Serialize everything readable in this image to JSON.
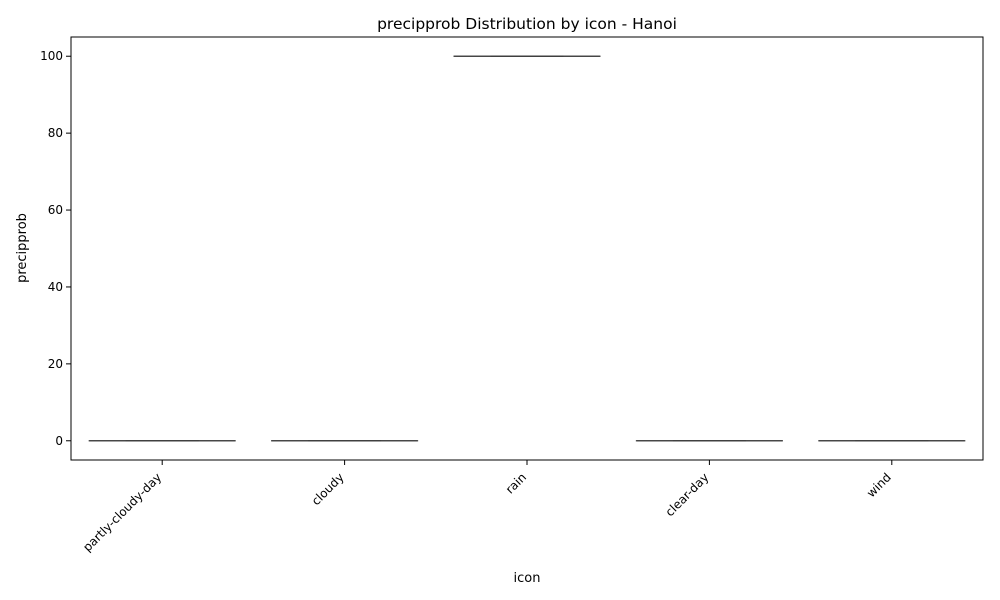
{
  "chart_data": {
    "type": "box",
    "title": "precipprob Distribution by icon - Hanoi",
    "xlabel": "icon",
    "ylabel": "precipprob",
    "categories": [
      "partly-cloudy-day",
      "cloudy",
      "rain",
      "clear-day",
      "wind"
    ],
    "boxes": [
      {
        "category": "partly-cloudy-day",
        "min": 0,
        "q1": 0,
        "median": 0,
        "q3": 0,
        "max": 0
      },
      {
        "category": "cloudy",
        "min": 0,
        "q1": 0,
        "median": 0,
        "q3": 0,
        "max": 0
      },
      {
        "category": "rain",
        "min": 100,
        "q1": 100,
        "median": 100,
        "q3": 100,
        "max": 100
      },
      {
        "category": "clear-day",
        "min": 0,
        "q1": 0,
        "median": 0,
        "q3": 0,
        "max": 0
      },
      {
        "category": "wind",
        "min": 0,
        "q1": 0,
        "median": 0,
        "q3": 0,
        "max": 0
      }
    ],
    "yticks": [
      0,
      20,
      40,
      60,
      80,
      100
    ],
    "ylim": [
      -5,
      105
    ],
    "grid": false,
    "legend": "none",
    "colors": {
      "box_line": "#3f3f3f",
      "axes": "#000000"
    }
  }
}
